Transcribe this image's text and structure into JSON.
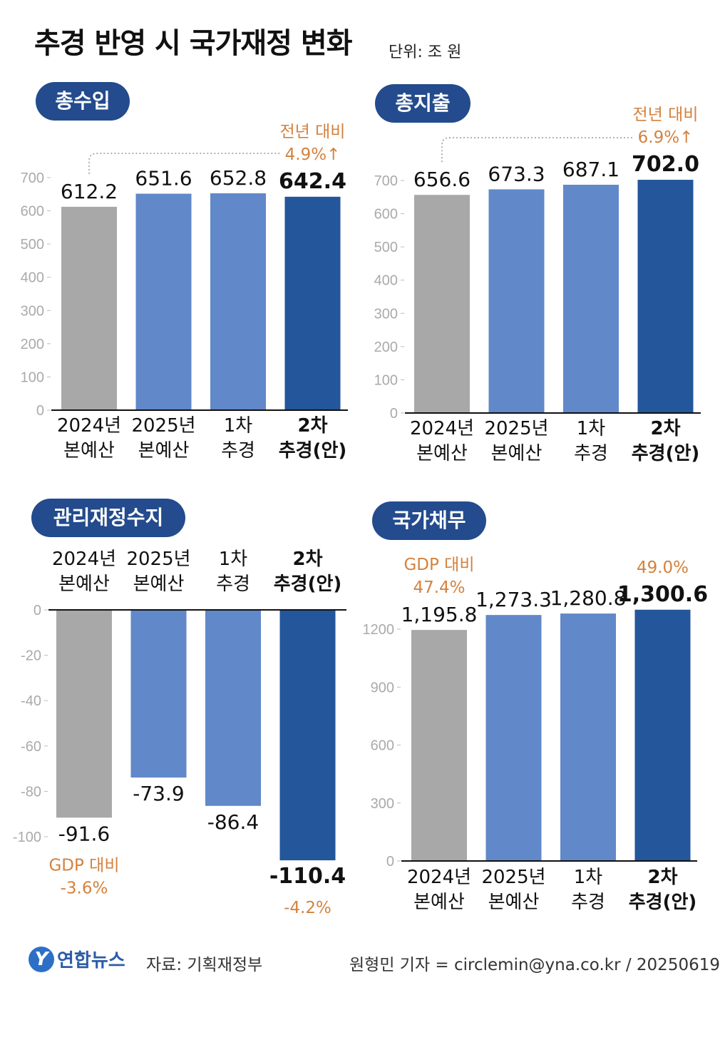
{
  "title": "추경 반영 시 국가재정 변화",
  "unit": "단위: 조 원",
  "colors": {
    "gray": "#a9a8a9",
    "blue": "#6188c8",
    "navy": "#24569b",
    "orange": "#d4823e",
    "pill": "#234b8d"
  },
  "chart_data": [
    {
      "type": "bar",
      "title": "총수입",
      "categories": [
        [
          "2024년",
          "본예산"
        ],
        [
          "2025년",
          "본예산"
        ],
        [
          "1차",
          "추경"
        ],
        [
          "2차",
          "추경(안)"
        ]
      ],
      "values": [
        612.2,
        651.6,
        652.8,
        642.4
      ],
      "value_labels": [
        "612.2",
        "651.6",
        "652.8",
        "642.4"
      ],
      "ylim": [
        0,
        700
      ],
      "yticks": [
        0,
        100,
        200,
        300,
        400,
        500,
        600,
        700
      ],
      "annotations": [
        {
          "lines": [
            "전년 대비",
            "4.9%↑"
          ],
          "target": 3
        }
      ]
    },
    {
      "type": "bar",
      "title": "총지출",
      "categories": [
        [
          "2024년",
          "본예산"
        ],
        [
          "2025년",
          "본예산"
        ],
        [
          "1차",
          "추경"
        ],
        [
          "2차",
          "추경(안)"
        ]
      ],
      "values": [
        656.6,
        673.3,
        687.1,
        702.0
      ],
      "value_labels": [
        "656.6",
        "673.3",
        "687.1",
        "702.0"
      ],
      "ylim": [
        0,
        700
      ],
      "yticks": [
        0,
        100,
        200,
        300,
        400,
        500,
        600,
        700
      ],
      "annotations": [
        {
          "lines": [
            "전년 대비",
            "6.9%↑"
          ],
          "target": 3
        }
      ]
    },
    {
      "type": "bar",
      "title": "관리재정수지",
      "categories": [
        [
          "2024년",
          "본예산"
        ],
        [
          "2025년",
          "본예산"
        ],
        [
          "1차",
          "추경"
        ],
        [
          "2차",
          "추경(안)"
        ]
      ],
      "values": [
        -91.6,
        -73.9,
        -86.4,
        -110.4
      ],
      "value_labels": [
        "-91.6",
        "-73.9",
        "-86.4",
        "-110.4"
      ],
      "ylim": [
        -100,
        0
      ],
      "yticks": [
        0,
        -20,
        -40,
        -60,
        -80,
        -100
      ],
      "annotations": [
        {
          "lines": [
            "GDP 대비",
            "-3.6%"
          ],
          "target": 0
        },
        {
          "lines": [
            "-4.2%"
          ],
          "target": 3
        }
      ]
    },
    {
      "type": "bar",
      "title": "국가채무",
      "categories": [
        [
          "2024년",
          "본예산"
        ],
        [
          "2025년",
          "본예산"
        ],
        [
          "1차",
          "추경"
        ],
        [
          "2차",
          "추경(안)"
        ]
      ],
      "values": [
        1195.8,
        1273.3,
        1280.8,
        1300.6
      ],
      "value_labels": [
        "1,195.8",
        "1,273.3",
        "1,280.8",
        "1,300.6"
      ],
      "ylim": [
        0,
        1200
      ],
      "yticks": [
        0,
        300,
        600,
        900,
        1200
      ],
      "annotations": [
        {
          "lines": [
            "GDP 대비",
            "47.4%"
          ],
          "target": 0
        },
        {
          "lines": [
            "49.0%"
          ],
          "target": 3
        }
      ]
    }
  ],
  "footer": {
    "logo_mark": "Y",
    "logo_text": "연합뉴스",
    "source": "자료: 기획재정부",
    "credit": "원형민 기자 = circlemin@yna.co.kr / 20250619"
  }
}
